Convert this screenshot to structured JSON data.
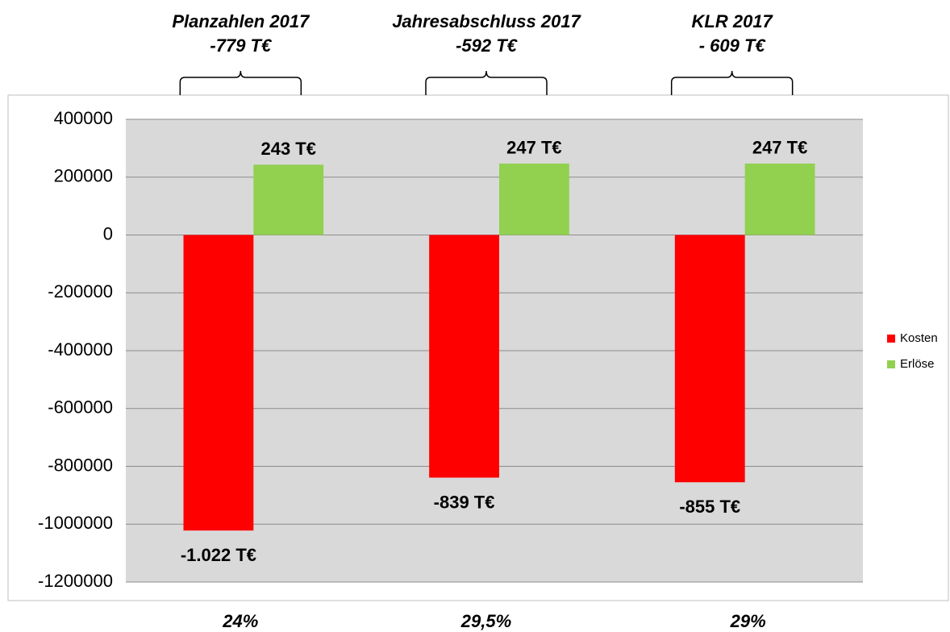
{
  "chart_data": {
    "type": "bar",
    "categories": [
      null,
      null,
      null
    ],
    "series": [
      {
        "name": "Kosten",
        "color": "#ff0000",
        "values": [
          -1022000,
          -839000,
          -855000
        ],
        "value_labels": [
          "-1.022 T€",
          "-839 T€",
          "-855 T€"
        ]
      },
      {
        "name": "Erlöse",
        "color": "#92d050",
        "values": [
          243000,
          247000,
          247000
        ],
        "value_labels": [
          "243 T€",
          "247 T€",
          "247 T€"
        ]
      }
    ],
    "ylim": [
      -1200000,
      400000
    ],
    "yticks": [
      -1200000,
      -1000000,
      -800000,
      -600000,
      -400000,
      -200000,
      0,
      200000,
      400000
    ],
    "grid": true,
    "legend": "right",
    "annotations_top": [
      [
        "Planzahlen 2017",
        "-779 T€"
      ],
      [
        "Jahresabschluss 2017",
        "-592 T€"
      ],
      [
        "KLR 2017",
        "- 609 T€"
      ]
    ],
    "annotations_bottom": [
      "24%",
      "29,5%",
      "29%"
    ]
  }
}
